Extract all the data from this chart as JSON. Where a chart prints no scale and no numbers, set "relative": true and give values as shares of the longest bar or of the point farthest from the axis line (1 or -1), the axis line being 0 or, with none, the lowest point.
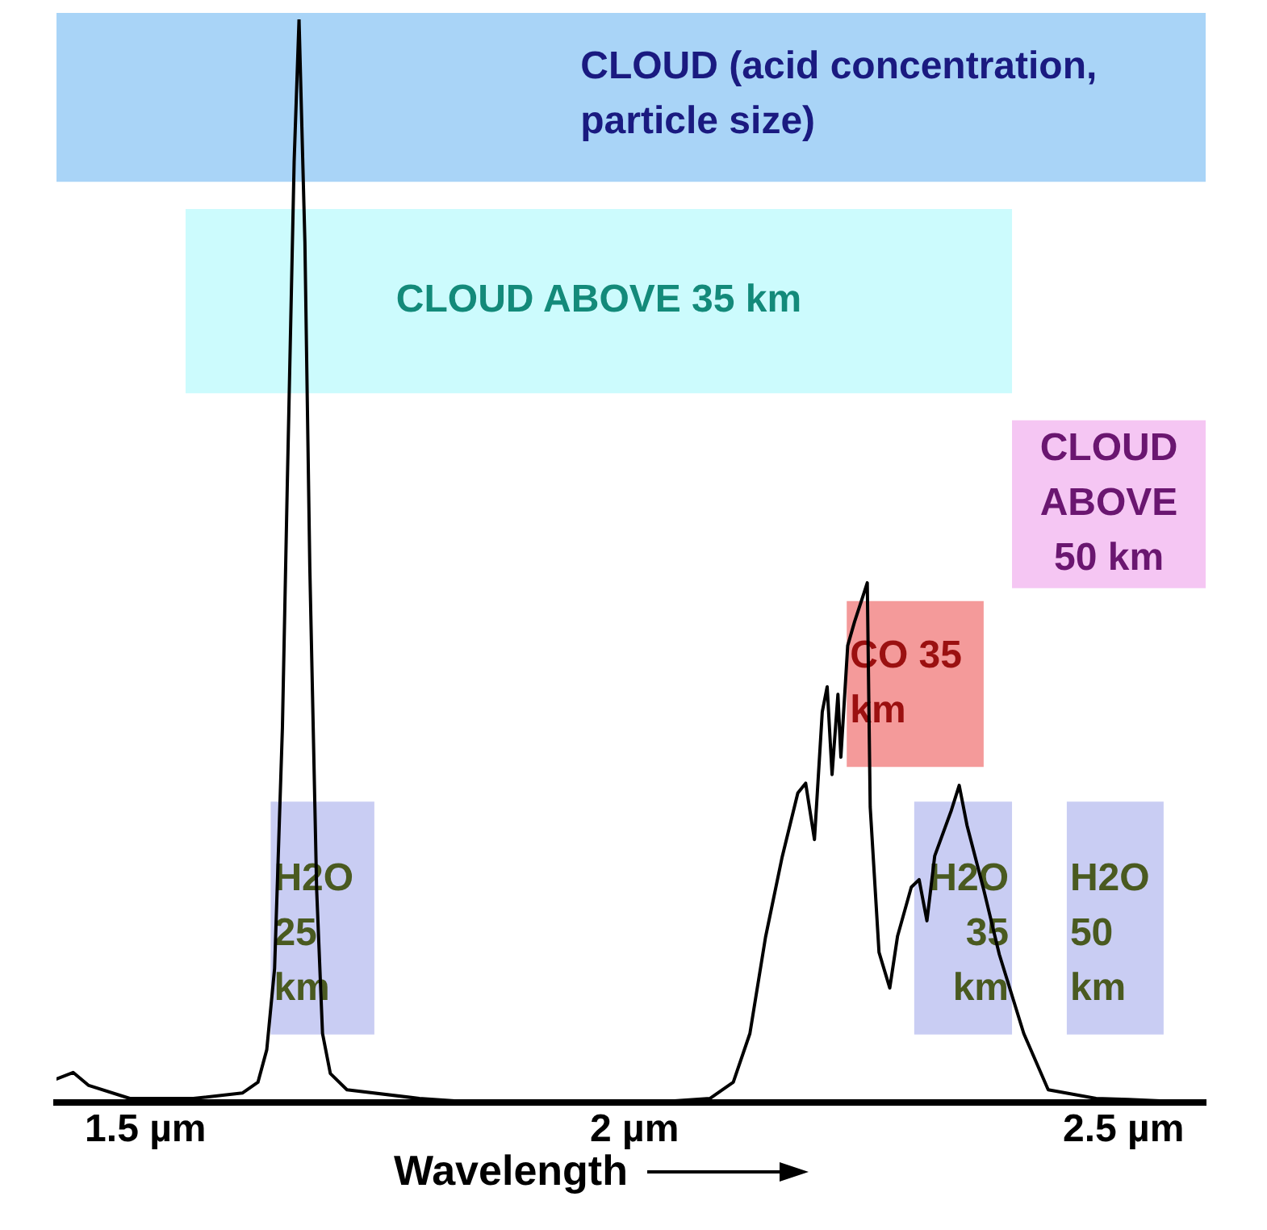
{
  "chart_data": {
    "type": "line",
    "xlabel": "Wavelength",
    "relative": true,
    "legend": false,
    "grid": false,
    "marker": "none",
    "line_style": "solid",
    "x": [
      1.409,
      1.426,
      1.442,
      1.484,
      1.549,
      1.599,
      1.615,
      1.624,
      1.632,
      1.64,
      1.645,
      1.652,
      1.657,
      1.663,
      1.668,
      1.675,
      1.681,
      1.689,
      1.706,
      1.78,
      1.846,
      2.011,
      2.077,
      2.101,
      2.118,
      2.134,
      2.151,
      2.167,
      2.175,
      2.184,
      2.192,
      2.197,
      2.202,
      2.208,
      2.211,
      2.218,
      2.225,
      2.233,
      2.238,
      2.241,
      2.25,
      2.261,
      2.269,
      2.283,
      2.291,
      2.299,
      2.307,
      2.324,
      2.332,
      2.34,
      2.357,
      2.373,
      2.398,
      2.423,
      2.472,
      2.505,
      2.584
    ],
    "series": [
      {
        "color": "#000000",
        "values": [
          0.022,
          0.028,
          0.016,
          0.004,
          0.004,
          0.009,
          0.019,
          0.049,
          0.124,
          0.346,
          0.571,
          0.869,
          1,
          0.794,
          0.495,
          0.197,
          0.064,
          0.027,
          0.012,
          0.004,
          0,
          0,
          0.004,
          0.019,
          0.064,
          0.153,
          0.227,
          0.286,
          0.295,
          0.243,
          0.361,
          0.384,
          0.303,
          0.377,
          0.319,
          0.422,
          0.444,
          0.466,
          0.48,
          0.273,
          0.139,
          0.106,
          0.154,
          0.199,
          0.206,
          0.168,
          0.228,
          0.27,
          0.293,
          0.256,
          0.197,
          0.137,
          0.064,
          0.012,
          0.004,
          0.003,
          0
        ]
      }
    ],
    "xlim": [
      1.409,
      2.584
    ],
    "xticks": [
      {
        "value": 1.5,
        "label": "1.5 µm"
      },
      {
        "value": 2,
        "label": "2 µm"
      },
      {
        "value": 2.5,
        "label": "2.5 µm"
      }
    ],
    "bands": [
      {
        "axis": "x",
        "from": 1.409,
        "to": 2.584,
        "label": "CLOUD (acid concentration, particle size)",
        "color": "#a9d4f7"
      },
      {
        "axis": "x",
        "from": 1.541,
        "to": 2.386,
        "label": "CLOUD ABOVE 35 km",
        "color": "#ccfbfd"
      },
      {
        "axis": "x",
        "from": 2.386,
        "to": 2.584,
        "label": "CLOUD ABOVE 50 km",
        "color": "#f5c6f3"
      },
      {
        "axis": "x",
        "from": 2.217,
        "to": 2.357,
        "label": "CO 35 km",
        "color": "#f49a9a"
      },
      {
        "axis": "x",
        "from": 1.628,
        "to": 1.734,
        "label": "H2O 25 km",
        "color": "#c9cdf3"
      },
      {
        "axis": "x",
        "from": 2.286,
        "to": 2.386,
        "label": "H2O 35 km",
        "color": "#c9cdf3"
      },
      {
        "axis": "x",
        "from": 2.442,
        "to": 2.541,
        "label": "H2O 50 km",
        "color": "#c9cdf3"
      }
    ]
  }
}
